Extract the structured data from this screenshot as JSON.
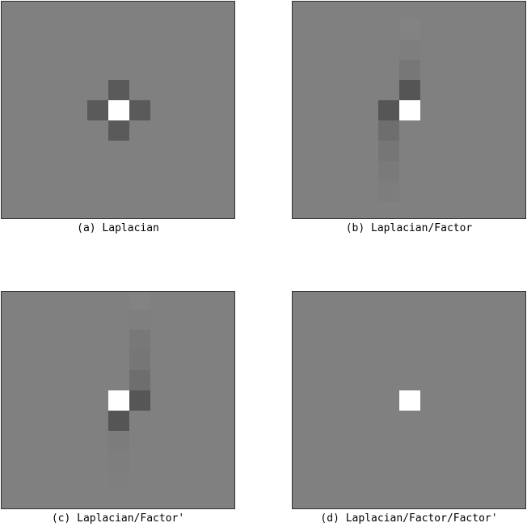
{
  "panels": [
    {
      "id": "a",
      "caption": "(a) Laplacian",
      "cells": [
        {
          "col": 0,
          "row": -1,
          "color": "#5a5a5a"
        },
        {
          "col": -1,
          "row": 0,
          "color": "#5a5a5a"
        },
        {
          "col": 0,
          "row": 0,
          "color": "#ffffff"
        },
        {
          "col": 1,
          "row": 0,
          "color": "#5a5a5a"
        },
        {
          "col": 0,
          "row": 1,
          "color": "#5a5a5a"
        }
      ]
    },
    {
      "id": "b",
      "caption": "(b) Laplacian/Factor",
      "cells": [
        {
          "col": 0,
          "row": -4,
          "color": "#838383"
        },
        {
          "col": 0,
          "row": -3,
          "color": "#7e7e7e"
        },
        {
          "col": 0,
          "row": -2,
          "color": "#777777"
        },
        {
          "col": 0,
          "row": -1,
          "color": "#555555"
        },
        {
          "col": -1,
          "row": 0,
          "color": "#565656"
        },
        {
          "col": 0,
          "row": 0,
          "color": "#ffffff"
        },
        {
          "col": -1,
          "row": 1,
          "color": "#6e6e6e"
        },
        {
          "col": -1,
          "row": 2,
          "color": "#767676"
        },
        {
          "col": -1,
          "row": 3,
          "color": "#7a7a7a"
        },
        {
          "col": -1,
          "row": 4,
          "color": "#7d7d7d"
        }
      ]
    },
    {
      "id": "c",
      "caption": "(c) Laplacian/Factor'",
      "cells": [
        {
          "col": 1,
          "row": -5,
          "color": "#838383"
        },
        {
          "col": 1,
          "row": -4,
          "color": "#7f7f7f"
        },
        {
          "col": 1,
          "row": -3,
          "color": "#787878"
        },
        {
          "col": 1,
          "row": -2,
          "color": "#767676"
        },
        {
          "col": 1,
          "row": -1,
          "color": "#6e6e6e"
        },
        {
          "col": 0,
          "row": 0,
          "color": "#ffffff"
        },
        {
          "col": 1,
          "row": 0,
          "color": "#565656"
        },
        {
          "col": 0,
          "row": 1,
          "color": "#555555"
        },
        {
          "col": 0,
          "row": 2,
          "color": "#7c7c7c"
        },
        {
          "col": 0,
          "row": 3,
          "color": "#7e7e7e"
        },
        {
          "col": 0,
          "row": 4,
          "color": "#7f7f7f"
        }
      ]
    },
    {
      "id": "d",
      "caption": "(d) Laplacian/Factor/Factor'",
      "cells": [
        {
          "col": 0,
          "row": 0,
          "color": "#ffffff"
        }
      ]
    }
  ]
}
